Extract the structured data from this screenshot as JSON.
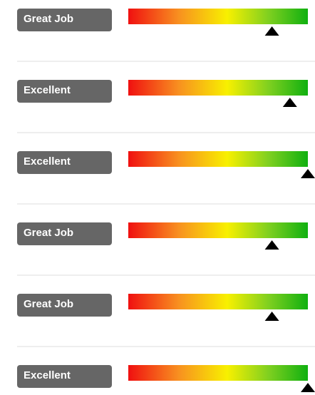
{
  "rows": [
    {
      "label": "Great Job",
      "score": 80
    },
    {
      "label": "Excellent",
      "score": 90
    },
    {
      "label": "Excellent",
      "score": 100
    },
    {
      "label": "Great Job",
      "score": 80
    },
    {
      "label": "Great Job",
      "score": 80
    },
    {
      "label": "Excellent",
      "score": 100
    }
  ]
}
